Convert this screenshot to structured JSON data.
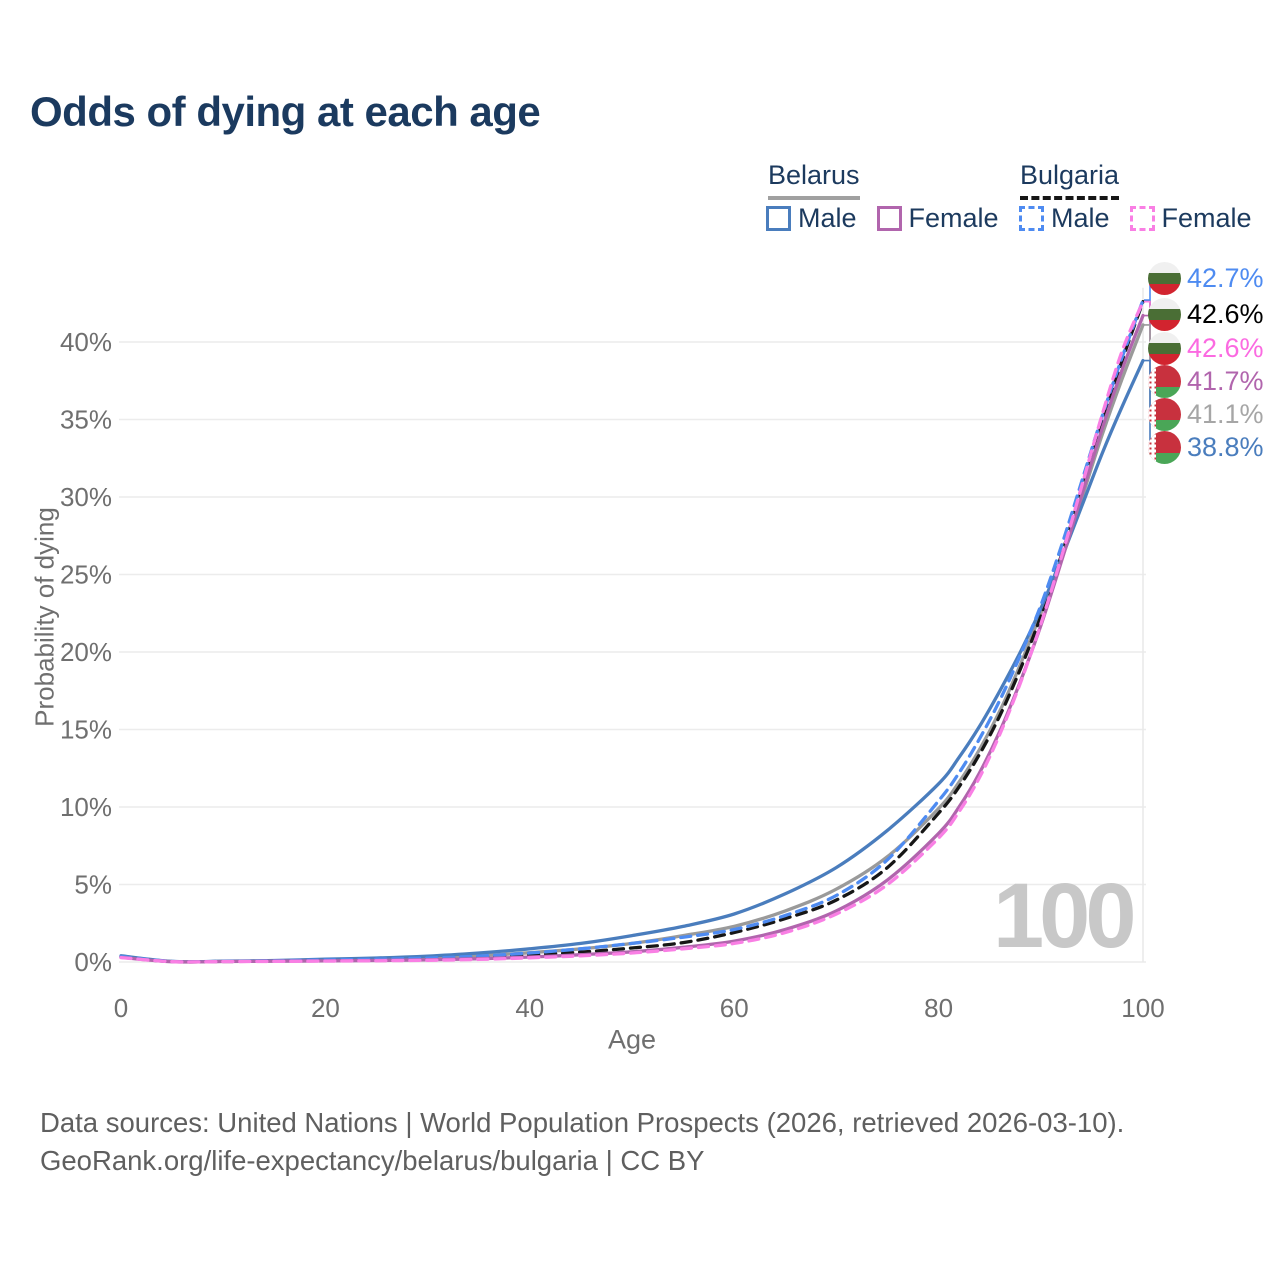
{
  "title": "Odds of dying at each age",
  "watermark": "100",
  "legend": {
    "groups": [
      {
        "label": "Belarus",
        "line_style": "solid",
        "line_color": "#a0a0a0",
        "items": [
          {
            "label": "Male",
            "color": "#4a7dbd",
            "dashed": false
          },
          {
            "label": "Female",
            "color": "#b165ad",
            "dashed": false
          }
        ]
      },
      {
        "label": "Bulgaria",
        "line_style": "dashed",
        "line_color": "#161616",
        "items": [
          {
            "label": "Male",
            "color": "#4e8bf1",
            "dashed": true
          },
          {
            "label": "Female",
            "color": "#f97fe4",
            "dashed": true
          }
        ]
      }
    ]
  },
  "chart_data": {
    "type": "line",
    "title": "Odds of dying at each age",
    "xlabel": "Age",
    "ylabel": "Probability of dying",
    "xlim": [
      0,
      100
    ],
    "ylim": [
      0,
      43.5
    ],
    "x_ticks": [
      0,
      20,
      40,
      60,
      80,
      100
    ],
    "y_ticks": [
      0,
      5,
      10,
      15,
      20,
      25,
      30,
      35,
      40
    ],
    "y_tick_suffix": "%",
    "grid": "horizontal",
    "legend_position": "top-right",
    "age_marker": 100,
    "x": [
      0,
      5,
      10,
      15,
      20,
      25,
      30,
      35,
      40,
      45,
      50,
      55,
      60,
      65,
      70,
      75,
      80,
      82,
      84,
      86,
      88,
      90,
      92,
      94,
      96,
      98,
      100
    ],
    "series": [
      {
        "name": "Bulgaria Male",
        "country": "Bulgaria",
        "sex": "Male",
        "flag": "bulgaria",
        "color": "#4e8bf1",
        "dashed": true,
        "label_color": "#4e8bf1",
        "end_label": "42.7%",
        "values": [
          0.35,
          0.03,
          0.04,
          0.08,
          0.13,
          0.18,
          0.25,
          0.38,
          0.58,
          0.85,
          1.2,
          1.6,
          2.1,
          3.0,
          4.3,
          6.6,
          10.4,
          12.2,
          14.4,
          16.9,
          19.8,
          23.0,
          26.8,
          31.0,
          35.2,
          39.1,
          42.7
        ]
      },
      {
        "name": "Bulgaria",
        "country": "Bulgaria",
        "sex": "Both",
        "flag": "bulgaria",
        "color": "#161616",
        "dashed": true,
        "label_color": "#000000",
        "end_label": "42.6%",
        "values": [
          0.32,
          0.025,
          0.03,
          0.06,
          0.1,
          0.14,
          0.19,
          0.29,
          0.44,
          0.64,
          0.9,
          1.25,
          1.9,
          2.8,
          4.0,
          6.1,
          9.6,
          11.3,
          13.4,
          15.9,
          18.9,
          22.3,
          26.2,
          30.5,
          34.8,
          38.9,
          42.6
        ]
      },
      {
        "name": "Bulgaria Female",
        "country": "Bulgaria",
        "sex": "Female",
        "flag": "bulgaria",
        "color": "#f97fe4",
        "dashed": true,
        "label_color": "#fb6ae1",
        "end_label": "42.6%",
        "values": [
          0.28,
          0.02,
          0.025,
          0.04,
          0.06,
          0.08,
          0.11,
          0.17,
          0.27,
          0.4,
          0.58,
          0.85,
          1.2,
          1.9,
          3.1,
          5.0,
          8.0,
          9.7,
          11.9,
          14.7,
          18.0,
          21.8,
          26.1,
          30.7,
          35.3,
          39.5,
          42.6
        ]
      },
      {
        "name": "Belarus Female",
        "country": "Belarus",
        "sex": "Female",
        "flag": "belarus",
        "color": "#b165ad",
        "dashed": false,
        "label_color": "#b165ad",
        "end_label": "41.7%",
        "values": [
          0.3,
          0.02,
          0.03,
          0.05,
          0.07,
          0.1,
          0.14,
          0.21,
          0.32,
          0.47,
          0.66,
          0.95,
          1.35,
          2.1,
          3.3,
          5.3,
          8.3,
          10.0,
          12.2,
          14.9,
          18.1,
          21.7,
          25.8,
          30.1,
          34.4,
          38.3,
          41.7
        ]
      },
      {
        "name": "Belarus",
        "country": "Belarus",
        "sex": "Both",
        "flag": "belarus",
        "color": "#9a9a9a",
        "dashed": false,
        "label_color": "#a6a6a6",
        "end_label": "41.1%",
        "values": [
          0.37,
          0.03,
          0.04,
          0.08,
          0.13,
          0.18,
          0.26,
          0.4,
          0.6,
          0.85,
          1.2,
          1.7,
          2.3,
          3.3,
          4.7,
          6.8,
          9.9,
          11.6,
          13.7,
          16.2,
          19.2,
          22.5,
          25.9,
          29.9,
          34.0,
          37.7,
          41.1
        ]
      },
      {
        "name": "Belarus Male",
        "country": "Belarus",
        "sex": "Male",
        "flag": "belarus",
        "color": "#4a7dbd",
        "dashed": false,
        "label_color": "#4a7dbd",
        "end_label": "38.8%",
        "values": [
          0.4,
          0.04,
          0.05,
          0.1,
          0.18,
          0.26,
          0.38,
          0.58,
          0.85,
          1.2,
          1.7,
          2.3,
          3.1,
          4.4,
          6.1,
          8.5,
          11.5,
          13.2,
          15.2,
          17.5,
          20.0,
          22.8,
          26.0,
          29.4,
          32.8,
          35.9,
          38.8
        ]
      }
    ]
  },
  "source": {
    "line1": "Data sources: United Nations | World Population Prospects (2026, retrieved 2026-03-10).",
    "line2": "GeoRank.org/life-expectancy/belarus/bulgaria | CC BY"
  }
}
